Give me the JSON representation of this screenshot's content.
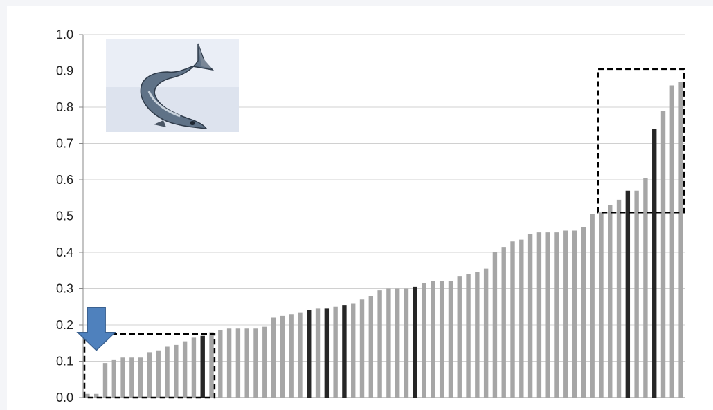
{
  "chart_data": {
    "type": "bar",
    "title": "",
    "xlabel": "",
    "ylabel": "",
    "ylim": [
      0,
      1.0
    ],
    "yticks": [
      "0.0",
      "0.1",
      "0.2",
      "0.3",
      "0.4",
      "0.5",
      "0.6",
      "0.7",
      "0.8",
      "0.9",
      "1.0"
    ],
    "grid": true,
    "legend": "none",
    "colors": {
      "default": "#a6a6a6",
      "highlight": "#262626",
      "gridline": "#d0d0d0",
      "arrow": "#4f81bd",
      "arrow_outline": "#3a6190"
    },
    "values": [
      0.01,
      0.01,
      0.095,
      0.105,
      0.11,
      0.11,
      0.11,
      0.125,
      0.13,
      0.14,
      0.145,
      0.155,
      0.165,
      0.17,
      0.18,
      0.185,
      0.19,
      0.19,
      0.19,
      0.19,
      0.195,
      0.22,
      0.225,
      0.23,
      0.235,
      0.24,
      0.245,
      0.245,
      0.25,
      0.255,
      0.26,
      0.27,
      0.28,
      0.295,
      0.3,
      0.3,
      0.3,
      0.305,
      0.315,
      0.32,
      0.32,
      0.32,
      0.335,
      0.34,
      0.345,
      0.355,
      0.4,
      0.415,
      0.43,
      0.435,
      0.45,
      0.455,
      0.455,
      0.455,
      0.46,
      0.46,
      0.47,
      0.505,
      0.51,
      0.53,
      0.545,
      0.57,
      0.57,
      0.605,
      0.74,
      0.79,
      0.86,
      0.87
    ],
    "highlighted_indices": [
      13,
      25,
      27,
      29,
      37,
      61,
      64
    ],
    "annotations": [
      {
        "type": "dashed-box",
        "category_range": [
          0,
          14
        ],
        "value_range": [
          0.0,
          0.175
        ]
      },
      {
        "type": "dashed-box",
        "category_range": [
          58,
          67
        ],
        "value_range": [
          0.51,
          0.905
        ]
      },
      {
        "type": "down-arrow",
        "category_index": 1,
        "points_to_value": 0.13
      },
      {
        "type": "photo",
        "subject": "salmon"
      }
    ]
  }
}
